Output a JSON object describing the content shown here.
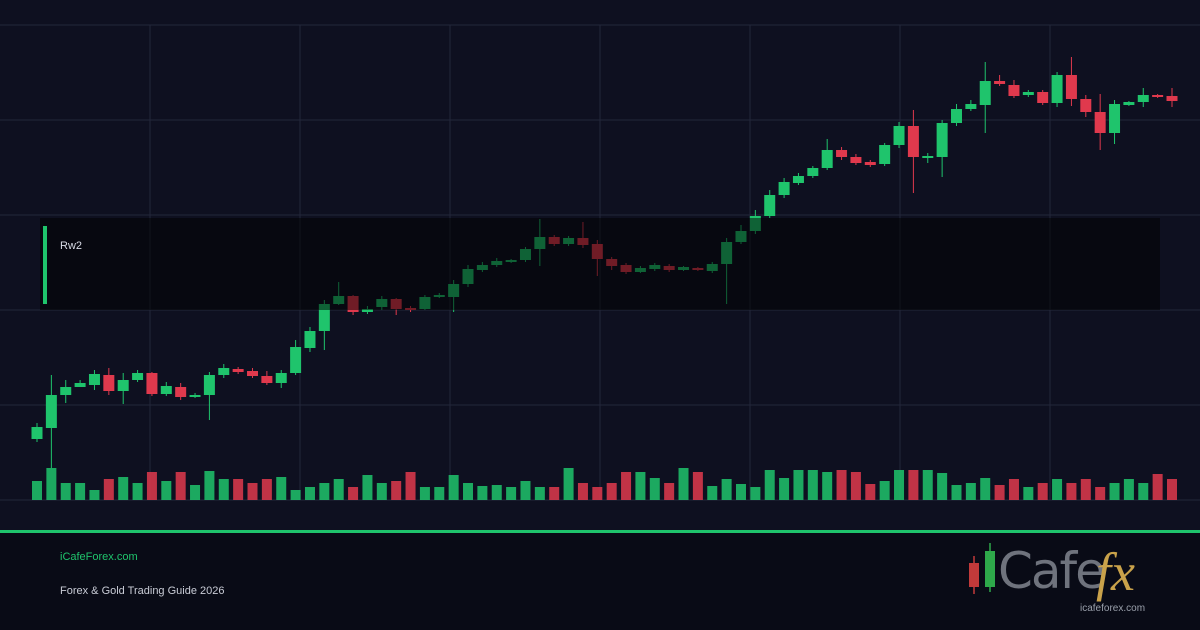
{
  "chart_data": {
    "type": "candlestick",
    "panel_label": "Rw2",
    "up_color": "#1fc46c",
    "down_color": "#e0394d",
    "ylim": [
      0,
      475
    ],
    "vlim": [
      0,
      95
    ],
    "open": [
      61,
      72,
      105,
      113,
      115,
      125,
      109,
      120,
      127,
      106,
      113,
      103,
      105,
      125,
      131,
      129,
      124,
      117,
      127,
      152,
      169,
      196,
      204,
      188,
      193,
      201,
      192,
      191,
      203,
      203,
      216,
      230,
      235,
      238,
      240,
      251,
      263,
      256,
      262,
      256,
      241,
      235,
      228,
      231,
      234,
      230,
      232,
      229,
      236,
      258,
      269,
      284,
      305,
      317,
      324,
      332,
      350,
      343,
      338,
      336,
      355,
      374,
      342,
      343,
      377,
      391,
      395,
      419,
      415,
      405,
      408,
      397,
      425,
      401,
      388,
      367,
      395,
      398,
      405,
      404
    ],
    "high": [
      77,
      125,
      120,
      120,
      130,
      132,
      127,
      130,
      128,
      118,
      117,
      107,
      128,
      136,
      133,
      132,
      129,
      130,
      160,
      173,
      200,
      218,
      205,
      194,
      204,
      202,
      194,
      205,
      207,
      220,
      235,
      238,
      242,
      241,
      253,
      281,
      265,
      264,
      278,
      260,
      243,
      237,
      234,
      237,
      236,
      234,
      233,
      238,
      262,
      275,
      290,
      310,
      322,
      327,
      334,
      361,
      353,
      346,
      340,
      357,
      378,
      390,
      347,
      380,
      396,
      400,
      438,
      425,
      420,
      410,
      410,
      428,
      443,
      405,
      406,
      400,
      399,
      412,
      406,
      412
    ],
    "low": [
      58,
      32,
      97,
      113,
      110,
      105,
      96,
      118,
      104,
      104,
      100,
      102,
      80,
      122,
      126,
      122,
      115,
      112,
      125,
      148,
      150,
      195,
      185,
      186,
      190,
      185,
      188,
      190,
      202,
      188,
      213,
      228,
      233,
      237,
      238,
      234,
      254,
      254,
      252,
      224,
      230,
      226,
      227,
      229,
      228,
      229,
      229,
      227,
      196,
      256,
      266,
      282,
      302,
      315,
      322,
      330,
      340,
      335,
      333,
      334,
      352,
      307,
      337,
      323,
      374,
      389,
      367,
      414,
      402,
      403,
      395,
      393,
      394,
      383,
      350,
      356,
      394,
      393,
      402,
      393
    ],
    "close": [
      73,
      105,
      113,
      117,
      126,
      109,
      120,
      127,
      106,
      114,
      103,
      105,
      125,
      132,
      128,
      124,
      117,
      127,
      153,
      169,
      196,
      204,
      188,
      191,
      201,
      191,
      190,
      203,
      205,
      216,
      231,
      235,
      239,
      240,
      251,
      263,
      256,
      262,
      255,
      241,
      234,
      228,
      232,
      235,
      230,
      233,
      230,
      236,
      258,
      269,
      284,
      305,
      318,
      324,
      332,
      350,
      343,
      337,
      335,
      355,
      374,
      343,
      344,
      377,
      391,
      396,
      419,
      416,
      404,
      408,
      397,
      425,
      401,
      388,
      367,
      396,
      398,
      405,
      403,
      399
    ],
    "volume": [
      19,
      32,
      17,
      17,
      10,
      21,
      23,
      17,
      28,
      19,
      28,
      15,
      29,
      21,
      21,
      17,
      21,
      23,
      10,
      13,
      17,
      21,
      13,
      25,
      17,
      19,
      28,
      13,
      13,
      25,
      17,
      14,
      15,
      13,
      19,
      13,
      13,
      32,
      17,
      13,
      17,
      28,
      28,
      22,
      17,
      32,
      28,
      14,
      21,
      16,
      13,
      30,
      22,
      30,
      30,
      28,
      30,
      28,
      16,
      19,
      30,
      30,
      30,
      27,
      15,
      17,
      22,
      15,
      21,
      13,
      17,
      21,
      17,
      21,
      13,
      17,
      21,
      17,
      26,
      21
    ]
  },
  "footer": {
    "site": "iCafeForex.com",
    "subtitle": "Forex & Gold Trading Guide 2026",
    "logo_main": "Cafe",
    "logo_accent": "fx",
    "logo_url": "icafeforex.com"
  }
}
